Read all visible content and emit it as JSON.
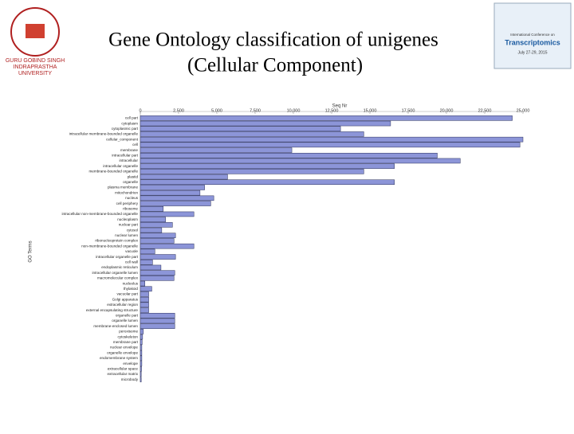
{
  "header": {
    "logo_left_text": [
      "GURU GOBIND SINGH",
      "INDRAPRASTHA",
      "UNIVERSITY"
    ],
    "logo_right_text": [
      "International Conference on",
      "Transcriptomics",
      "July 27-29, 2015"
    ]
  },
  "chart_data": {
    "type": "bar",
    "orientation": "horizontal",
    "title_lines": [
      "Gene Ontology classification of unigenes",
      "(Cellular Component)"
    ],
    "x_label": "Seq Nr",
    "y_label": "GO Terms",
    "color": "#8c95d8",
    "grid": false,
    "xlim": [
      0,
      25000
    ],
    "xticks": [
      0,
      {
        "value": 2500,
        "label": "2,500"
      },
      {
        "value": 5000,
        "label": "5,000"
      },
      {
        "value": 7500,
        "label": "7,500"
      },
      {
        "value": 10000,
        "label": "10,000"
      },
      {
        "value": 12500,
        "label": "12,500"
      },
      {
        "value": 15000,
        "label": "15,000"
      },
      {
        "value": 17500,
        "label": "17,500"
      },
      {
        "value": 20000,
        "label": "20,000"
      },
      {
        "value": 22500,
        "label": "22,500"
      },
      {
        "value": 25000,
        "label": "25,000"
      }
    ],
    "categories": [
      "cell part",
      "cytoplasm",
      "cytoplasmic part",
      "intracellular membrane-bounded organelle",
      "cellular_component",
      "cell",
      "membrane",
      "intracellular part",
      "intracellular",
      "intracellular organelle",
      "membrane-bounded organelle",
      "plastid",
      "organelle",
      "plasma membrane",
      "mitochondrion",
      "nucleus",
      "cell periphery",
      "ribosome",
      "intracellular non-membrane-bounded organelle",
      "nucleoplasm",
      "nuclear part",
      "cytosol",
      "nuclear lumen",
      "ribonucleoprotein complex",
      "non-membrane-bounded organelle",
      "vacuole",
      "intracellular organelle part",
      "cell wall",
      "endoplasmic reticulum",
      "intracellular organelle lumen",
      "macromolecular complex",
      "nucleolus",
      "thylakoid",
      "vacuolar part",
      "Golgi apparatus",
      "extracellular region",
      "external encapsulating structure",
      "organelle part",
      "organelle lumen",
      "membrane-enclosed lumen",
      "peroxisome",
      "cytoskeleton",
      "membrane part",
      "nuclear envelope",
      "organelle envelope",
      "endomembrane system",
      "envelope",
      "extracellular space",
      "extracellular matrix",
      "microbody"
    ],
    "values": [
      24300,
      16350,
      13080,
      14600,
      25000,
      24800,
      9900,
      19400,
      20900,
      16600,
      14600,
      5700,
      16600,
      4200,
      3900,
      4800,
      4600,
      1500,
      3500,
      1650,
      2100,
      1400,
      2300,
      2200,
      3500,
      950,
      2300,
      800,
      1350,
      2250,
      2200,
      300,
      750,
      550,
      550,
      550,
      550,
      2250,
      2250,
      2250,
      200,
      150,
      120,
      100,
      100,
      100,
      100,
      80,
      60,
      60
    ]
  }
}
